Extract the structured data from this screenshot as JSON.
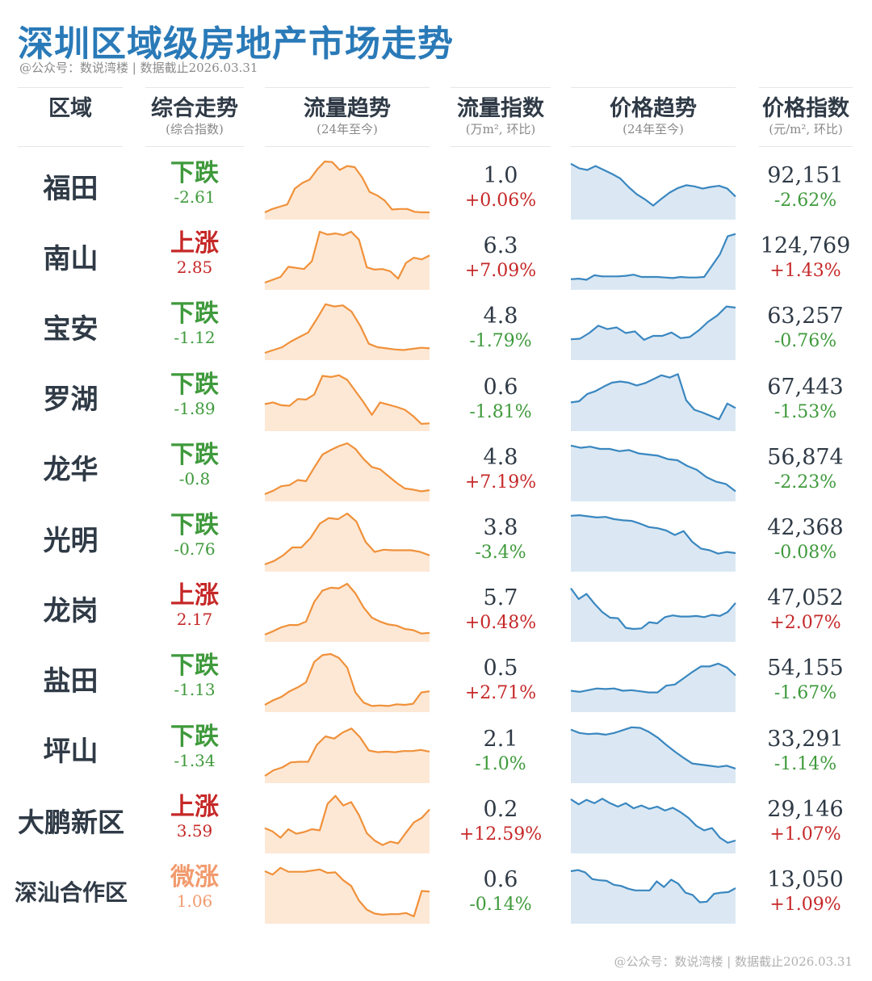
{
  "title": "深圳区域级房地产市场走势",
  "subtitle": "@公众号：数说湾楼 | 数据截止2026.03.31",
  "footer": "@公众号：数说湾楼 | 数据截止2026.03.31",
  "colors": {
    "title": "#2a7ab8",
    "flow_line": "#f0913a",
    "flow_fill": "#fde8d6",
    "price_line": "#3a87c0",
    "price_fill": "#dbe8f3",
    "up": "#c62828",
    "down": "#3f9a3c",
    "mild_up": "#f29b6e"
  },
  "headers": {
    "region": {
      "title": "区域",
      "sub": ""
    },
    "trend": {
      "title": "综合走势",
      "sub": "(综合指数)"
    },
    "flow_trend": {
      "title": "流量趋势",
      "sub": "(24年至今)"
    },
    "flow_index": {
      "title": "流量指数",
      "sub": "(万m², 环比)"
    },
    "price_trend": {
      "title": "价格趋势",
      "sub": "(24年至今)"
    },
    "price_index": {
      "title": "价格指数",
      "sub": "(元/m², 环比)"
    }
  },
  "chart_data": {
    "type": "table",
    "columns": [
      "区域",
      "综合走势",
      "综合指数",
      "流量指数",
      "流量环比",
      "价格指数",
      "价格环比"
    ],
    "rows": [
      {
        "region": "福田",
        "trend_word": "下跌",
        "trend_val": "-2.61",
        "dir": "down",
        "flow": "1.0",
        "flow_pct": "+0.06%",
        "flow_dir": "up",
        "price": "92,151",
        "price_pct": "-2.62%",
        "price_dir": "down",
        "flow_series": [
          1.0,
          1.6,
          2.0,
          2.4,
          5.2,
          6.2,
          6.8,
          8.6,
          10.0,
          9.9,
          8.5,
          9.2,
          9.0,
          7.2,
          4.6,
          4.0,
          3.1,
          1.5,
          1.6,
          1.6,
          1.1,
          1.0,
          1.0
        ],
        "price_series": [
          9.6,
          8.8,
          8.5,
          9.2,
          8.5,
          7.8,
          7.0,
          5.5,
          4.2,
          3.3,
          2.2,
          3.4,
          4.5,
          5.3,
          5.8,
          5.6,
          5.2,
          5.5,
          5.7,
          5.2,
          3.8
        ]
      },
      {
        "region": "南山",
        "trend_word": "上涨",
        "trend_val": "2.85",
        "dir": "up",
        "flow": "6.3",
        "flow_pct": "+7.09%",
        "flow_dir": "up",
        "price": "124,769",
        "price_pct": "+1.43%",
        "price_dir": "up",
        "flow_series": [
          1.0,
          1.5,
          2.0,
          3.8,
          3.6,
          3.4,
          4.8,
          10.0,
          9.5,
          9.7,
          9.4,
          10.0,
          8.6,
          3.7,
          3.3,
          3.4,
          3.0,
          1.7,
          4.5,
          5.4,
          5.1,
          5.8
        ],
        "price_series": [
          1.6,
          1.7,
          1.5,
          2.3,
          2.1,
          2.1,
          2.1,
          2.2,
          2.4,
          2.0,
          2.0,
          2.0,
          1.9,
          1.8,
          2.0,
          1.9,
          1.9,
          2.0,
          4.0,
          6.0,
          9.2,
          9.6
        ]
      },
      {
        "region": "宝安",
        "trend_word": "下跌",
        "trend_val": "-1.12",
        "dir": "down",
        "flow": "4.8",
        "flow_pct": "-1.79%",
        "flow_dir": "down",
        "price": "63,257",
        "price_pct": "-0.76%",
        "price_dir": "down",
        "flow_series": [
          1.0,
          1.5,
          2.0,
          3.0,
          3.8,
          4.6,
          7.0,
          9.6,
          9.2,
          9.4,
          8.3,
          5.8,
          2.6,
          2.0,
          1.8,
          1.6,
          1.5,
          1.7,
          1.9,
          1.8
        ],
        "price_series": [
          3.4,
          3.5,
          4.5,
          5.8,
          5.2,
          5.5,
          4.5,
          4.8,
          3.3,
          4.0,
          4.0,
          4.6,
          3.6,
          3.8,
          5.0,
          6.5,
          7.6,
          9.2,
          9.0
        ]
      },
      {
        "region": "罗湖",
        "trend_word": "下跌",
        "trend_val": "-1.89",
        "dir": "down",
        "flow": "0.6",
        "flow_pct": "-1.81%",
        "flow_dir": "down",
        "price": "67,443",
        "price_pct": "-1.53%",
        "price_dir": "down",
        "flow_series": [
          4.5,
          4.8,
          4.3,
          4.2,
          5.4,
          5.3,
          6.2,
          9.5,
          9.3,
          9.6,
          8.8,
          6.8,
          4.8,
          2.6,
          4.8,
          4.4,
          4.0,
          3.5,
          2.4,
          1.0,
          1.1
        ],
        "price_series": [
          4.8,
          5.0,
          6.3,
          6.8,
          7.6,
          8.3,
          8.5,
          8.3,
          7.8,
          8.2,
          8.9,
          9.6,
          9.2,
          9.8,
          5.2,
          3.5,
          3.0,
          2.4,
          1.8,
          4.6,
          3.8
        ]
      },
      {
        "region": "龙华",
        "trend_word": "下跌",
        "trend_val": "-0.8",
        "dir": "down",
        "flow": "4.8",
        "flow_pct": "+7.19%",
        "flow_dir": "up",
        "price": "56,874",
        "price_pct": "-2.23%",
        "price_dir": "down",
        "flow_series": [
          1.0,
          1.6,
          2.4,
          2.6,
          3.5,
          3.3,
          5.7,
          8.0,
          8.8,
          9.5,
          10.0,
          9.0,
          7.2,
          5.8,
          5.4,
          4.2,
          3.0,
          2.0,
          1.8,
          1.5,
          1.7
        ],
        "price_series": [
          9.6,
          9.2,
          9.4,
          9.0,
          9.0,
          8.6,
          8.8,
          8.2,
          8.0,
          7.8,
          7.2,
          7.0,
          6.0,
          5.3,
          4.0,
          3.2,
          2.8,
          1.5
        ]
      },
      {
        "region": "光明",
        "trend_word": "下跌",
        "trend_val": "-0.76",
        "dir": "down",
        "flow": "3.8",
        "flow_pct": "-3.4%",
        "flow_dir": "down",
        "price": "42,368",
        "price_pct": "-0.08%",
        "price_dir": "down",
        "flow_series": [
          1.0,
          1.6,
          2.6,
          4.0,
          4.0,
          5.7,
          8.2,
          9.2,
          9.0,
          10.0,
          8.6,
          5.0,
          3.2,
          3.6,
          3.5,
          3.5,
          3.5,
          3.2,
          2.6
        ],
        "price_series": [
          9.6,
          9.7,
          9.5,
          9.3,
          9.4,
          9.0,
          8.8,
          8.7,
          8.2,
          7.6,
          7.4,
          7.0,
          6.2,
          6.9,
          5.0,
          3.8,
          3.5,
          2.9,
          3.2,
          3.0
        ]
      },
      {
        "region": "龙岗",
        "trend_word": "上涨",
        "trend_val": "2.17",
        "dir": "up",
        "flow": "5.7",
        "flow_pct": "+0.48%",
        "flow_dir": "up",
        "price": "47,052",
        "price_pct": "+2.07%",
        "price_dir": "up",
        "flow_series": [
          1.0,
          1.6,
          2.3,
          2.7,
          2.7,
          3.3,
          6.8,
          8.8,
          9.3,
          9.2,
          10.0,
          8.3,
          5.8,
          4.0,
          3.3,
          2.8,
          2.6,
          2.0,
          1.8,
          1.2,
          1.3
        ],
        "price_series": [
          9.2,
          7.3,
          8.2,
          6.5,
          5.0,
          4.0,
          3.9,
          2.2,
          2.0,
          2.1,
          3.2,
          3.0,
          4.1,
          4.4,
          4.2,
          4.2,
          4.3,
          4.1,
          4.5,
          4.3,
          5.0,
          6.6
        ]
      },
      {
        "region": "盐田",
        "trend_word": "下跌",
        "trend_val": "-1.13",
        "dir": "down",
        "flow": "0.5",
        "flow_pct": "+2.71%",
        "flow_dir": "up",
        "price": "54,155",
        "price_pct": "-1.67%",
        "price_dir": "down",
        "flow_series": [
          1.0,
          1.8,
          2.4,
          3.4,
          4.1,
          5.0,
          8.6,
          9.8,
          10.0,
          9.3,
          7.6,
          3.2,
          1.4,
          0.8,
          0.9,
          0.8,
          1.1,
          1.0,
          1.2,
          3.2,
          3.4
        ],
        "price_series": [
          3.5,
          3.3,
          3.6,
          3.9,
          3.8,
          3.9,
          3.5,
          3.6,
          3.4,
          3.2,
          3.2,
          4.4,
          4.6,
          5.7,
          6.8,
          7.8,
          7.8,
          8.3,
          7.6,
          6.2
        ]
      },
      {
        "region": "坪山",
        "trend_word": "下跌",
        "trend_val": "-1.34",
        "dir": "down",
        "flow": "2.1",
        "flow_pct": "-1.0%",
        "flow_dir": "down",
        "price": "33,291",
        "price_pct": "-1.14%",
        "price_dir": "down",
        "flow_series": [
          1.0,
          2.0,
          2.5,
          3.4,
          3.5,
          3.5,
          6.5,
          8.0,
          7.6,
          8.7,
          9.4,
          7.8,
          5.5,
          5.2,
          5.3,
          5.2,
          5.4,
          5.4,
          5.6,
          5.3
        ],
        "price_series": [
          9.2,
          8.6,
          8.4,
          8.5,
          8.3,
          8.6,
          9.1,
          9.6,
          9.5,
          8.8,
          7.8,
          6.5,
          5.3,
          4.2,
          3.2,
          3.0,
          2.8,
          2.6,
          2.8,
          2.3
        ]
      },
      {
        "region": "大鹏新区",
        "trend_word": "上涨",
        "trend_val": "3.59",
        "dir": "up",
        "flow": "0.2",
        "flow_pct": "+12.59%",
        "flow_dir": "up",
        "price": "29,146",
        "price_pct": "+1.07%",
        "price_dir": "up",
        "flow_series": [
          4.2,
          3.6,
          2.5,
          4.0,
          3.2,
          3.5,
          4.0,
          3.8,
          8.5,
          9.9,
          8.2,
          8.8,
          6.5,
          3.3,
          2.0,
          1.2,
          1.8,
          1.5,
          3.4,
          5.2,
          6.0,
          7.5
        ],
        "price_series": [
          9.3,
          8.4,
          9.2,
          8.6,
          9.4,
          8.6,
          8.0,
          8.6,
          7.7,
          8.2,
          7.6,
          8.0,
          7.3,
          7.8,
          7.0,
          6.0,
          4.6,
          3.8,
          4.2,
          2.5,
          1.6,
          2.0
        ]
      },
      {
        "region": "深汕合作区",
        "trend_word": "微涨",
        "trend_val": "1.06",
        "dir": "mild",
        "flow": "0.6",
        "flow_pct": "-0.14%",
        "flow_dir": "down",
        "price": "13,050",
        "price_pct": "+1.09%",
        "price_dir": "up",
        "flow_series": [
          9.0,
          8.4,
          9.6,
          8.9,
          8.9,
          8.9,
          9.1,
          9.3,
          8.7,
          8.8,
          7.4,
          6.4,
          3.8,
          2.2,
          1.5,
          1.3,
          1.4,
          1.4,
          1.6,
          1.0,
          5.5,
          5.4
        ],
        "price_series": [
          9.0,
          9.2,
          8.8,
          7.6,
          7.4,
          7.3,
          6.6,
          6.4,
          5.9,
          5.6,
          5.6,
          5.6,
          7.2,
          6.2,
          7.5,
          6.8,
          5.2,
          4.8,
          3.5,
          3.6,
          5.0,
          5.2,
          5.3,
          6.0
        ]
      }
    ]
  }
}
